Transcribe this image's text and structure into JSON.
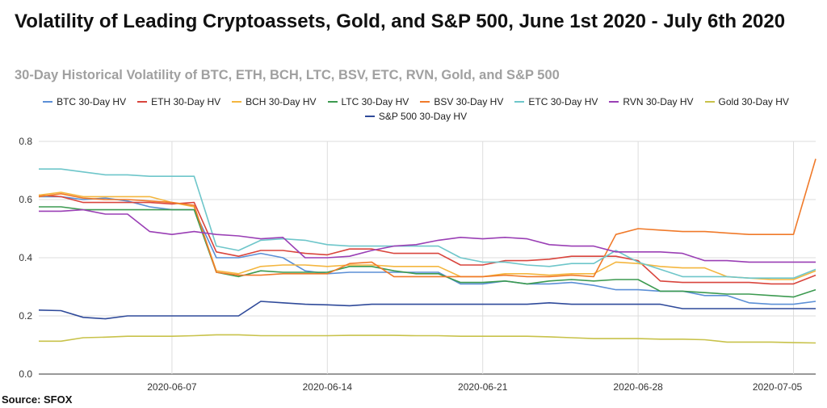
{
  "title": "Volatility of Leading Cryptoassets, Gold, and S&P 500, June 1st 2020 - July 6th 2020",
  "subtitle": "30-Day Historical Volatility of BTC, ETH, BCH, LTC, BSV, ETC, RVN, Gold, and S&P 500",
  "source": "Source: SFOX",
  "chart_data": {
    "type": "line",
    "title": "Volatility of Leading Cryptoassets, Gold, and S&P 500, June 1st 2020 - July 6th 2020",
    "subtitle": "30-Day Historical Volatility of BTC, ETH, BCH, LTC, BSV, ETC, RVN, Gold, and S&P 500",
    "xlabel": "",
    "ylabel": "",
    "ylim": [
      0,
      0.8
    ],
    "yticks": [
      "0.0",
      "0.2",
      "0.4",
      "0.6",
      "0.8"
    ],
    "xtick_labels": [
      "2020-06-07",
      "2020-06-14",
      "2020-06-21",
      "2020-06-28",
      "2020-07-05"
    ],
    "grid": true,
    "legend_position": "top",
    "x": [
      "2020-06-01",
      "2020-06-02",
      "2020-06-03",
      "2020-06-04",
      "2020-06-05",
      "2020-06-06",
      "2020-06-07",
      "2020-06-08",
      "2020-06-09",
      "2020-06-10",
      "2020-06-11",
      "2020-06-12",
      "2020-06-13",
      "2020-06-14",
      "2020-06-15",
      "2020-06-16",
      "2020-06-17",
      "2020-06-18",
      "2020-06-19",
      "2020-06-20",
      "2020-06-21",
      "2020-06-22",
      "2020-06-23",
      "2020-06-24",
      "2020-06-25",
      "2020-06-26",
      "2020-06-27",
      "2020-06-28",
      "2020-06-29",
      "2020-06-30",
      "2020-07-01",
      "2020-07-02",
      "2020-07-03",
      "2020-07-04",
      "2020-07-05",
      "2020-07-06"
    ],
    "series": [
      {
        "name": "BTC 30-Day HV",
        "color": "#5b8fd6",
        "values": [
          0.61,
          0.61,
          0.6,
          0.605,
          0.595,
          0.575,
          0.565,
          0.565,
          0.4,
          0.4,
          0.415,
          0.4,
          0.355,
          0.345,
          0.35,
          0.35,
          0.35,
          0.35,
          0.35,
          0.31,
          0.31,
          0.32,
          0.31,
          0.31,
          0.315,
          0.305,
          0.29,
          0.29,
          0.285,
          0.285,
          0.27,
          0.27,
          0.245,
          0.24,
          0.24,
          0.25
        ]
      },
      {
        "name": "ETH 30-Day HV",
        "color": "#d9453d",
        "values": [
          0.615,
          0.61,
          0.59,
          0.59,
          0.59,
          0.59,
          0.585,
          0.59,
          0.42,
          0.405,
          0.425,
          0.425,
          0.415,
          0.41,
          0.43,
          0.43,
          0.415,
          0.415,
          0.415,
          0.375,
          0.375,
          0.39,
          0.39,
          0.395,
          0.405,
          0.405,
          0.405,
          0.39,
          0.32,
          0.315,
          0.315,
          0.315,
          0.315,
          0.31,
          0.31,
          0.34
        ]
      },
      {
        "name": "BCH 30-Day HV",
        "color": "#f4b63f",
        "values": [
          0.615,
          0.625,
          0.61,
          0.61,
          0.61,
          0.61,
          0.59,
          0.575,
          0.355,
          0.345,
          0.37,
          0.375,
          0.375,
          0.37,
          0.375,
          0.375,
          0.37,
          0.37,
          0.37,
          0.335,
          0.335,
          0.345,
          0.345,
          0.34,
          0.345,
          0.345,
          0.385,
          0.38,
          0.37,
          0.365,
          0.365,
          0.335,
          0.33,
          0.325,
          0.325,
          0.355
        ]
      },
      {
        "name": "LTC 30-Day HV",
        "color": "#3c9a50",
        "values": [
          0.575,
          0.575,
          0.565,
          0.565,
          0.565,
          0.565,
          0.565,
          0.565,
          0.35,
          0.335,
          0.355,
          0.35,
          0.35,
          0.35,
          0.37,
          0.37,
          0.355,
          0.345,
          0.345,
          0.315,
          0.315,
          0.32,
          0.31,
          0.32,
          0.325,
          0.32,
          0.325,
          0.325,
          0.285,
          0.285,
          0.28,
          0.275,
          0.275,
          0.27,
          0.265,
          0.29
        ]
      },
      {
        "name": "BSV 30-Day HV",
        "color": "#f07a2a",
        "values": [
          0.61,
          0.62,
          0.605,
          0.6,
          0.6,
          0.595,
          0.59,
          0.58,
          0.35,
          0.34,
          0.34,
          0.345,
          0.345,
          0.345,
          0.38,
          0.385,
          0.335,
          0.335,
          0.335,
          0.335,
          0.335,
          0.34,
          0.335,
          0.335,
          0.34,
          0.335,
          0.48,
          0.5,
          0.495,
          0.49,
          0.49,
          0.485,
          0.48,
          0.48,
          0.48,
          0.74
        ]
      },
      {
        "name": "ETC 30-Day HV",
        "color": "#6ec6ca",
        "values": [
          0.705,
          0.705,
          0.695,
          0.685,
          0.685,
          0.68,
          0.68,
          0.68,
          0.44,
          0.425,
          0.46,
          0.465,
          0.46,
          0.445,
          0.44,
          0.44,
          0.44,
          0.44,
          0.44,
          0.4,
          0.385,
          0.385,
          0.375,
          0.37,
          0.38,
          0.38,
          0.425,
          0.385,
          0.36,
          0.335,
          0.335,
          0.335,
          0.33,
          0.33,
          0.33,
          0.36
        ]
      },
      {
        "name": "RVN 30-Day HV",
        "color": "#9a3fb5",
        "values": [
          0.56,
          0.56,
          0.565,
          0.55,
          0.55,
          0.49,
          0.48,
          0.49,
          0.48,
          0.475,
          0.465,
          0.47,
          0.4,
          0.4,
          0.405,
          0.425,
          0.44,
          0.445,
          0.46,
          0.47,
          0.465,
          0.47,
          0.465,
          0.445,
          0.44,
          0.44,
          0.42,
          0.42,
          0.42,
          0.415,
          0.39,
          0.39,
          0.385,
          0.385,
          0.385,
          0.385
        ]
      },
      {
        "name": "Gold 30-Day HV",
        "color": "#c8c24a",
        "values": [
          0.113,
          0.113,
          0.125,
          0.127,
          0.13,
          0.13,
          0.13,
          0.132,
          0.135,
          0.135,
          0.132,
          0.132,
          0.132,
          0.132,
          0.133,
          0.133,
          0.133,
          0.132,
          0.132,
          0.13,
          0.13,
          0.13,
          0.13,
          0.128,
          0.125,
          0.122,
          0.122,
          0.122,
          0.12,
          0.12,
          0.118,
          0.11,
          0.11,
          0.11,
          0.108,
          0.107
        ]
      },
      {
        "name": "S&P 500 30-Day HV",
        "color": "#2f4a9a",
        "values": [
          0.22,
          0.218,
          0.195,
          0.19,
          0.2,
          0.2,
          0.2,
          0.2,
          0.2,
          0.2,
          0.25,
          0.245,
          0.24,
          0.238,
          0.235,
          0.24,
          0.24,
          0.24,
          0.24,
          0.24,
          0.24,
          0.24,
          0.24,
          0.245,
          0.24,
          0.24,
          0.24,
          0.24,
          0.24,
          0.225,
          0.225,
          0.225,
          0.225,
          0.225,
          0.225,
          0.225
        ]
      }
    ]
  }
}
